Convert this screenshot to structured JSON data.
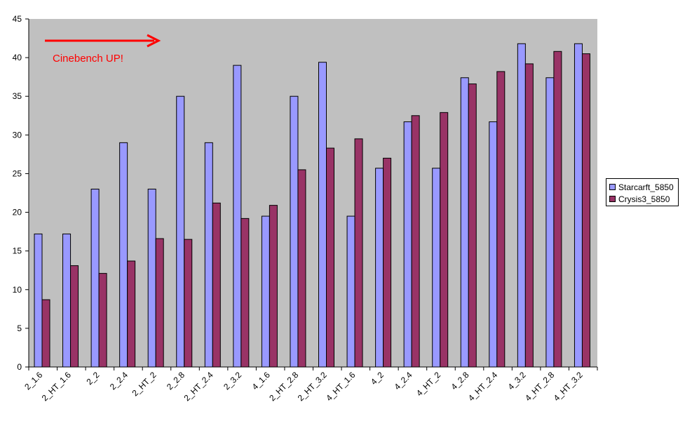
{
  "chart_data": {
    "type": "bar",
    "categories": [
      "2_1.6",
      "2_HT_1.6",
      "2_2",
      "2_2.4",
      "2_HT_2",
      "2_2.8",
      "2_HT_2.4",
      "2_3.2",
      "4_1.6",
      "2_HT_2.8",
      "2_HT_3.2",
      "4_HT_1.6",
      "4_2",
      "4_2.4",
      "4_HT_2",
      "4_2.8",
      "4_HT_2.4",
      "4_3.2",
      "4_HT_2.8",
      "4_HT_3.2"
    ],
    "series": [
      {
        "name": "Starcarft_5850",
        "color": "#9999ff",
        "values": [
          17.2,
          17.2,
          23.0,
          29.0,
          23.0,
          35.0,
          29.0,
          39.0,
          19.5,
          35.0,
          39.4,
          19.5,
          25.7,
          31.7,
          25.7,
          37.4,
          31.7,
          41.8,
          37.4,
          41.8
        ]
      },
      {
        "name": "Crysis3_5850",
        "color": "#993366",
        "values": [
          8.7,
          13.1,
          12.1,
          13.7,
          16.6,
          16.5,
          21.2,
          19.2,
          20.9,
          25.5,
          28.3,
          29.5,
          27.0,
          32.5,
          32.9,
          36.6,
          38.2,
          39.2,
          40.8,
          40.5
        ]
      }
    ],
    "ylim": [
      0,
      45
    ],
    "yticks": [
      "0",
      "5",
      "10",
      "15",
      "20",
      "25",
      "30",
      "35",
      "40",
      "45"
    ],
    "grid": false,
    "plot_background": "#c0c0c0",
    "legend_position": "right",
    "annotation": {
      "text": "Cinebench UP!",
      "color": "#ff0000",
      "arrow": "right"
    }
  }
}
